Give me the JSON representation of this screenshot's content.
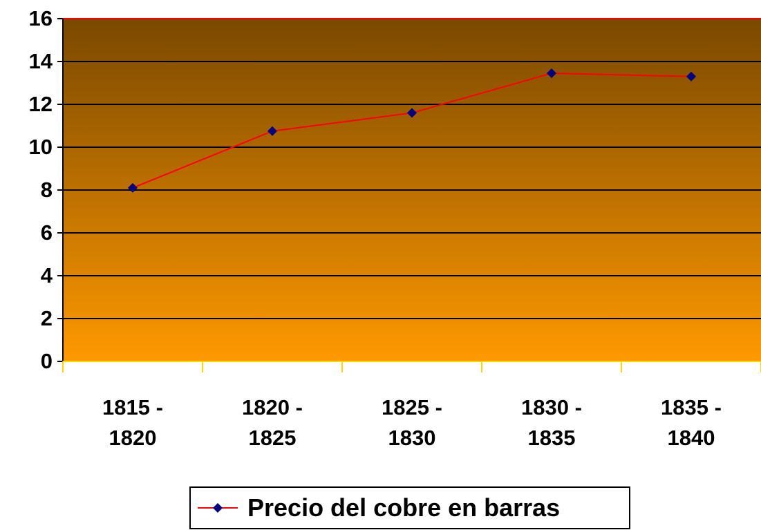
{
  "chart_data": {
    "type": "line",
    "categories": [
      "1815 - 1820",
      "1820 - 1825",
      "1825 - 1830",
      "1830 - 1835",
      "1835 - 1840"
    ],
    "series": [
      {
        "name": "Precio del cobre en barras",
        "color": "#ff0000",
        "marker_color": "#000080",
        "values": [
          8.1,
          10.75,
          11.6,
          13.45,
          13.3
        ]
      }
    ],
    "ylim": [
      0,
      16
    ],
    "yticks": [
      0,
      2,
      4,
      6,
      8,
      10,
      12,
      14,
      16
    ],
    "grid": true,
    "legend": "bottom"
  }
}
